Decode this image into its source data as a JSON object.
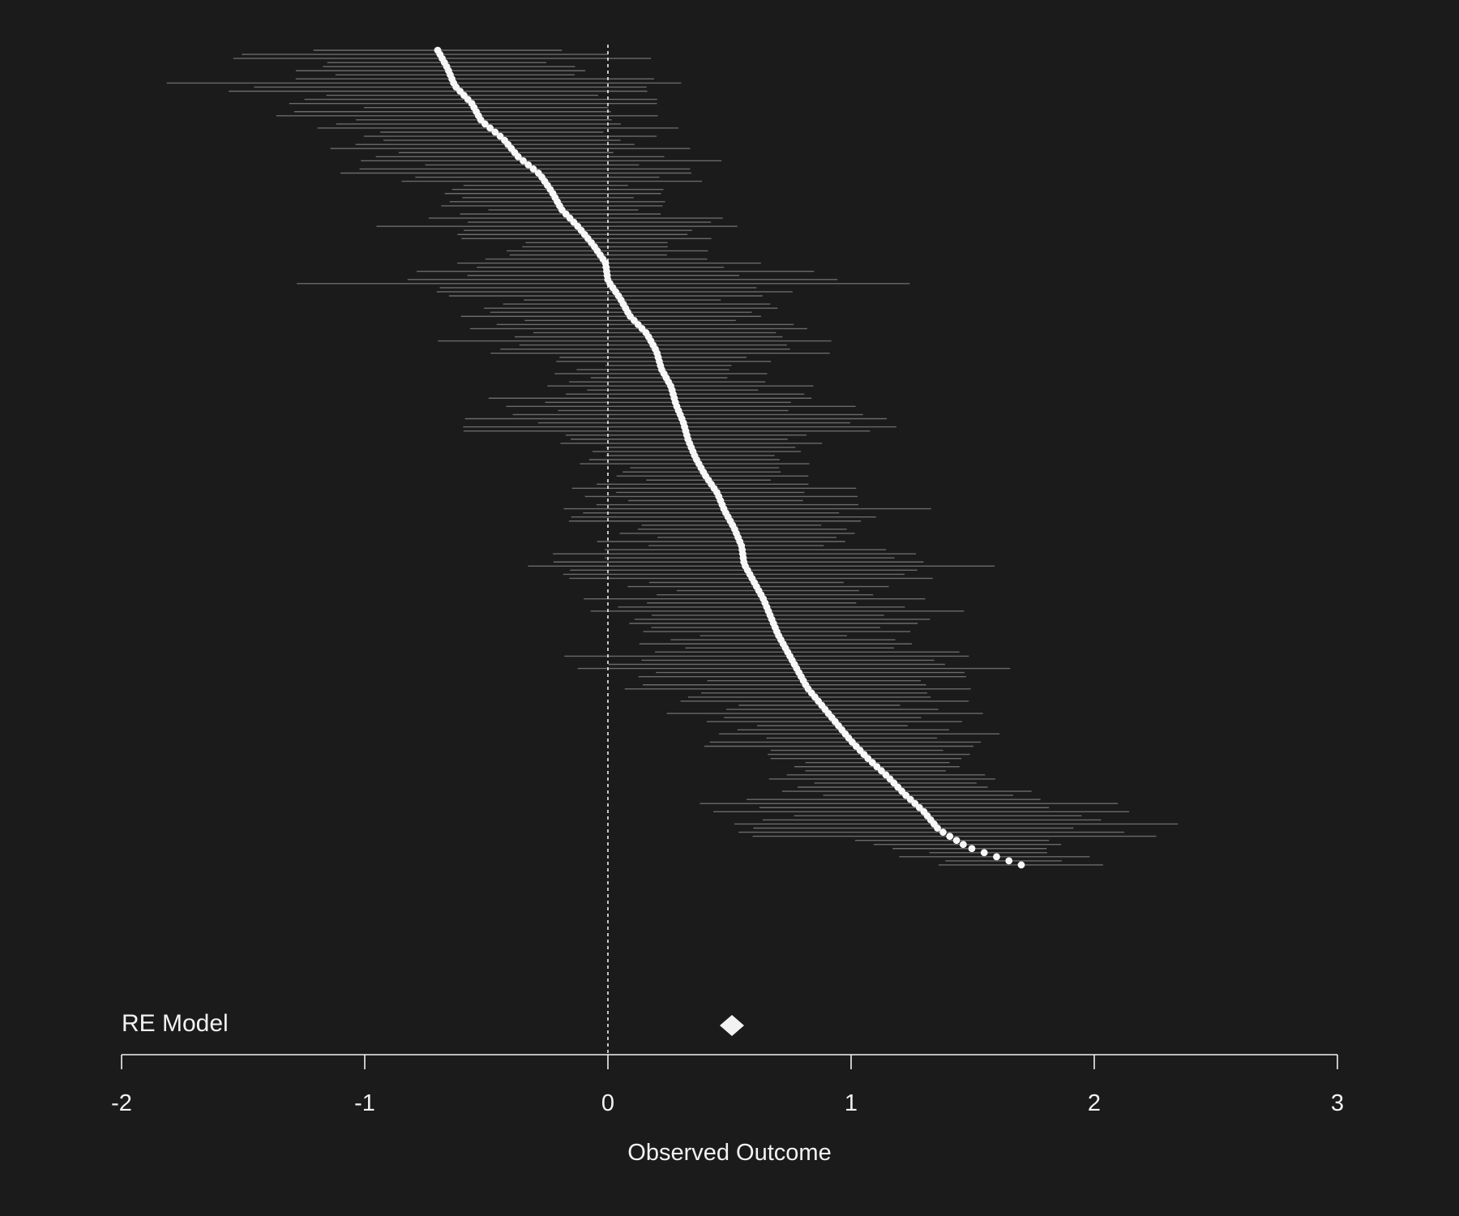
{
  "chart_data": {
    "type": "forest",
    "xlabel": "Observed Outcome",
    "xlim": [
      -2,
      3
    ],
    "x_ticks": [
      -2,
      -1,
      0,
      1,
      2,
      3
    ],
    "x_tick_labels": [
      "-2",
      "-1",
      "0",
      "1",
      "2",
      "3"
    ],
    "reference_line": 0,
    "summary": {
      "label": "RE Model",
      "estimate": 0.51,
      "ci_lower": 0.46,
      "ci_upper": 0.56
    },
    "study_count": 200,
    "effect_range": [
      -0.7,
      1.7
    ],
    "studies": [
      {
        "yi": -0.7,
        "ci": [
          -1.49,
          0.18
        ]
      },
      {
        "yi": -0.66,
        "ci": [
          -1.18,
          -0.21
        ]
      },
      {
        "yi": -0.63,
        "ci": [
          -1.49,
          0.24
        ]
      },
      {
        "yi": -0.56,
        "ci": [
          -1.25,
          0.19
        ]
      },
      {
        "yi": -0.52,
        "ci": [
          -1.12,
          0.04
        ]
      },
      {
        "yi": -0.43,
        "ci": [
          -1.0,
          0.2
        ]
      },
      {
        "yi": -0.37,
        "ci": [
          -0.92,
          0.32
        ]
      },
      {
        "yi": -0.28,
        "ci": [
          -0.83,
          0.33
        ]
      },
      {
        "yi": -0.23,
        "ci": [
          -0.62,
          0.3
        ]
      },
      {
        "yi": -0.19,
        "ci": [
          -0.52,
          0.2
        ]
      },
      {
        "yi": -0.12,
        "ci": [
          -0.81,
          0.53
        ]
      },
      {
        "yi": -0.06,
        "ci": [
          -0.4,
          0.24
        ]
      },
      {
        "yi": -0.01,
        "ci": [
          -0.48,
          0.41
        ]
      },
      {
        "yi": 0.0,
        "ci": [
          -1.07,
          1.06
        ]
      },
      {
        "yi": 0.05,
        "ci": [
          -0.45,
          0.55
        ]
      },
      {
        "yi": 0.09,
        "ci": [
          -0.56,
          0.58
        ]
      },
      {
        "yi": 0.16,
        "ci": [
          -0.51,
          0.83
        ]
      },
      {
        "yi": 0.2,
        "ci": [
          -0.34,
          0.79
        ]
      },
      {
        "yi": 0.22,
        "ci": [
          -0.14,
          0.5
        ]
      },
      {
        "yi": 0.26,
        "ci": [
          -0.17,
          0.72
        ]
      },
      {
        "yi": 0.28,
        "ci": [
          -0.27,
          0.86
        ]
      },
      {
        "yi": 0.31,
        "ci": [
          -0.61,
          1.24
        ]
      },
      {
        "yi": 0.33,
        "ci": [
          -0.07,
          0.81
        ]
      },
      {
        "yi": 0.36,
        "ci": [
          -0.08,
          0.8
        ]
      },
      {
        "yi": 0.4,
        "ci": [
          0.08,
          0.74
        ]
      },
      {
        "yi": 0.45,
        "ci": [
          0.02,
          0.92
        ]
      },
      {
        "yi": 0.48,
        "ci": [
          -0.2,
          1.19
        ]
      },
      {
        "yi": 0.52,
        "ci": [
          0.14,
          0.93
        ]
      },
      {
        "yi": 0.55,
        "ci": [
          0.08,
          1.05
        ]
      },
      {
        "yi": 0.56,
        "ci": [
          -0.34,
          1.5
        ]
      },
      {
        "yi": 0.6,
        "ci": [
          0.13,
          1.1
        ]
      },
      {
        "yi": 0.64,
        "ci": [
          0.07,
          1.18
        ]
      },
      {
        "yi": 0.67,
        "ci": [
          0.05,
          1.3
        ]
      },
      {
        "yi": 0.7,
        "ci": [
          0.27,
          1.1
        ]
      },
      {
        "yi": 0.74,
        "ci": [
          0.13,
          1.43
        ]
      },
      {
        "yi": 0.78,
        "ci": [
          0.1,
          1.53
        ]
      },
      {
        "yi": 0.82,
        "ci": [
          0.27,
          1.47
        ]
      },
      {
        "yi": 0.88,
        "ci": [
          0.44,
          1.35
        ]
      },
      {
        "yi": 0.94,
        "ci": [
          0.5,
          1.41
        ]
      },
      {
        "yi": 1.0,
        "ci": [
          0.53,
          1.58
        ]
      },
      {
        "yi": 1.07,
        "ci": [
          0.75,
          1.41
        ]
      },
      {
        "yi": 1.15,
        "ci": [
          0.75,
          1.55
        ]
      },
      {
        "yi": 1.22,
        "ci": [
          0.75,
          1.67
        ]
      },
      {
        "yi": 1.3,
        "ci": [
          0.49,
          2.06
        ]
      },
      {
        "yi": 1.36,
        "ci": [
          0.53,
          2.24
        ]
      },
      {
        "yi": 1.48,
        "ci": [
          1.22,
          1.78
        ]
      },
      {
        "yi": 1.7,
        "ci": [
          1.31,
          2.0
        ]
      }
    ]
  }
}
